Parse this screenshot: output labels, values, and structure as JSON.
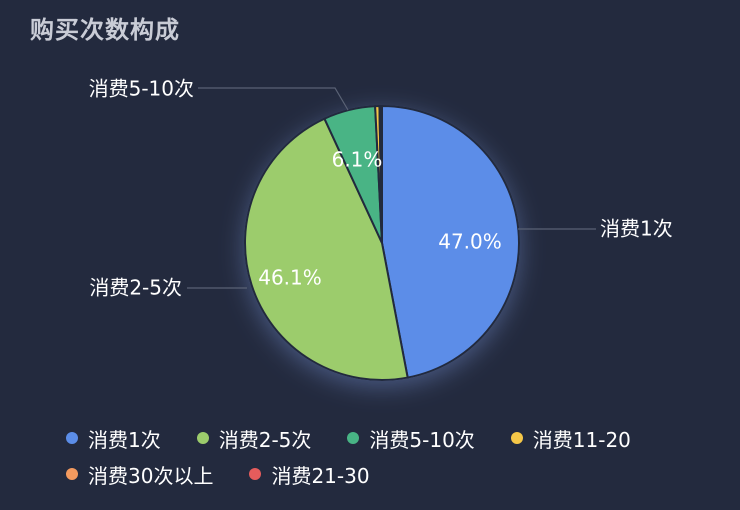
{
  "title": "购买次数构成",
  "chart_data": {
    "type": "pie",
    "title": "购买次数构成",
    "slices": [
      {
        "name": "消费1次",
        "value": 47.0,
        "label": "47.0%",
        "color": "#5b8de8"
      },
      {
        "name": "消费2-5次",
        "value": 46.1,
        "label": "46.1%",
        "color": "#9ccc6c"
      },
      {
        "name": "消费5-10次",
        "value": 6.1,
        "label": "6.1%",
        "color": "#48b485"
      },
      {
        "name": "消费11-20",
        "value": 0.5,
        "label": "",
        "color": "#f5c748"
      },
      {
        "name": "消费30次以上",
        "value": 0.2,
        "label": "",
        "color": "#f39a5f"
      },
      {
        "name": "消费21-30",
        "value": 0.1,
        "label": "",
        "color": "#e55c5c"
      }
    ],
    "legend": [
      "消费1次",
      "消费2-5次",
      "消费5-10次",
      "消费11-20",
      "消费30次以上",
      "消费21-30"
    ],
    "legend_position": "bottom"
  }
}
